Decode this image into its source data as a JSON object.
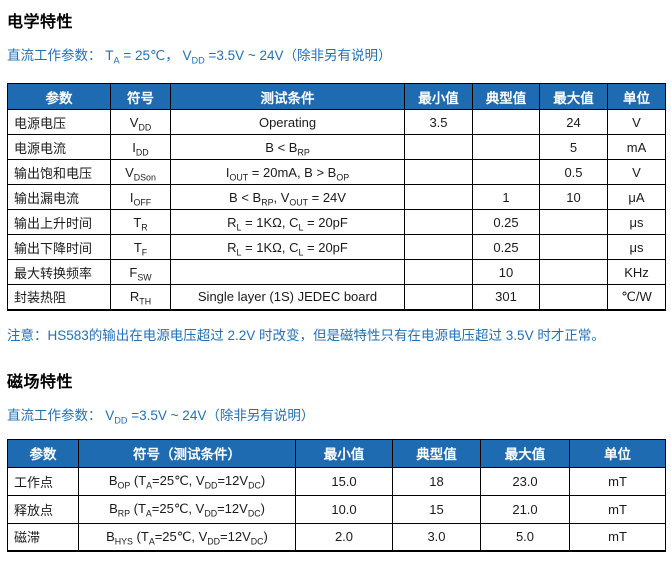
{
  "colors": {
    "header_bg": "#1E6BB1",
    "blue_text": "#2171B8",
    "border": "#000000"
  },
  "electrical": {
    "title": "电学特性",
    "condition": [
      {
        "t": "直流工作参数： T"
      },
      {
        "t": "A",
        "sub": true
      },
      {
        "t": " = 25℃， V"
      },
      {
        "t": "DD",
        "sub": true
      },
      {
        "t": " =3.5V ~ 24V（除非另有说明）"
      }
    ],
    "headers": [
      "参数",
      "符号",
      "测试条件",
      "最小值",
      "典型值",
      "最大值",
      "单位"
    ],
    "rows": [
      {
        "param": "电源电压",
        "symbol": [
          {
            "t": "V"
          },
          {
            "t": "DD",
            "sub": true
          }
        ],
        "cond": [
          {
            "t": "Operating"
          }
        ],
        "min": "3.5",
        "typ": "",
        "max": "24",
        "unit": "V"
      },
      {
        "param": "电源电流",
        "symbol": [
          {
            "t": "I"
          },
          {
            "t": "DD",
            "sub": true
          }
        ],
        "cond": [
          {
            "t": "B < B"
          },
          {
            "t": "RP",
            "sub": true
          }
        ],
        "min": "",
        "typ": "",
        "max": "5",
        "unit": "mA"
      },
      {
        "param": "输出饱和电压",
        "symbol": [
          {
            "t": "V"
          },
          {
            "t": "DSon",
            "sub": true
          }
        ],
        "cond": [
          {
            "t": "I"
          },
          {
            "t": "OUT",
            "sub": true
          },
          {
            "t": " = 20mA, B > B"
          },
          {
            "t": "OP",
            "sub": true
          }
        ],
        "min": "",
        "typ": "",
        "max": "0.5",
        "unit": "V"
      },
      {
        "param": "输出漏电流",
        "symbol": [
          {
            "t": "I"
          },
          {
            "t": "OFF",
            "sub": true
          }
        ],
        "cond": [
          {
            "t": "B < B"
          },
          {
            "t": "RP",
            "sub": true
          },
          {
            "t": ", V"
          },
          {
            "t": "OUT",
            "sub": true
          },
          {
            "t": " = 24V"
          }
        ],
        "min": "",
        "typ": "1",
        "max": "10",
        "unit": "μA"
      },
      {
        "param": "输出上升时间",
        "symbol": [
          {
            "t": "T"
          },
          {
            "t": "R",
            "sub": true
          }
        ],
        "cond": [
          {
            "t": "R"
          },
          {
            "t": "L",
            "sub": true
          },
          {
            "t": " = 1KΩ, C"
          },
          {
            "t": "L",
            "sub": true
          },
          {
            "t": " = 20pF"
          }
        ],
        "min": "",
        "typ": "0.25",
        "max": "",
        "unit": "μs"
      },
      {
        "param": "输出下降时间",
        "symbol": [
          {
            "t": "T"
          },
          {
            "t": "F",
            "sub": true
          }
        ],
        "cond": [
          {
            "t": "R"
          },
          {
            "t": "L",
            "sub": true
          },
          {
            "t": " = 1KΩ, C"
          },
          {
            "t": "L",
            "sub": true
          },
          {
            "t": " = 20pF"
          }
        ],
        "min": "",
        "typ": "0.25",
        "max": "",
        "unit": "μs"
      },
      {
        "param": "最大转换频率",
        "symbol": [
          {
            "t": "F"
          },
          {
            "t": "SW",
            "sub": true
          }
        ],
        "cond": [
          {
            "t": ""
          }
        ],
        "min": "",
        "typ": "10",
        "max": "",
        "unit": "KHz"
      },
      {
        "param": "封装热阻",
        "symbol": [
          {
            "t": "R"
          },
          {
            "t": "TH",
            "sub": true
          }
        ],
        "cond": [
          {
            "t": "Single layer (1S) JEDEC board"
          }
        ],
        "min": "",
        "typ": "301",
        "max": "",
        "unit": "℃/W"
      }
    ],
    "note": "注意：HS583的输出在电源电压超过 2.2V 时改变，但是磁特性只有在电源电压超过 3.5V 时才正常。"
  },
  "magnetic": {
    "title": "磁场特性",
    "condition": [
      {
        "t": "直流工作参数： V"
      },
      {
        "t": "DD",
        "sub": true
      },
      {
        "t": " =3.5V ~ 24V（除非另有说明）"
      }
    ],
    "headers": [
      "参数",
      "符号（测试条件）",
      "最小值",
      "典型值",
      "最大值",
      "单位"
    ],
    "rows": [
      {
        "param": "工作点",
        "symbol": [
          {
            "t": "B"
          },
          {
            "t": "OP",
            "sub": true
          },
          {
            "t": " (T"
          },
          {
            "t": "A",
            "sub": true
          },
          {
            "t": "=25℃, V"
          },
          {
            "t": "DD",
            "sub": true
          },
          {
            "t": "=12V"
          },
          {
            "t": "DC",
            "sub": true
          },
          {
            "t": ")"
          }
        ],
        "min": "15.0",
        "typ": "18",
        "max": "23.0",
        "unit": "mT"
      },
      {
        "param": "释放点",
        "symbol": [
          {
            "t": "B"
          },
          {
            "t": "RP",
            "sub": true
          },
          {
            "t": " (T"
          },
          {
            "t": "A",
            "sub": true
          },
          {
            "t": "=25℃, V"
          },
          {
            "t": "DD",
            "sub": true
          },
          {
            "t": "=12V"
          },
          {
            "t": "DC",
            "sub": true
          },
          {
            "t": ")"
          }
        ],
        "min": "10.0",
        "typ": "15",
        "max": "21.0",
        "unit": "mT"
      },
      {
        "param": "磁滞",
        "symbol": [
          {
            "t": "B"
          },
          {
            "t": "HYS",
            "sub": true
          },
          {
            "t": " (T"
          },
          {
            "t": "A",
            "sub": true
          },
          {
            "t": "=25℃, V"
          },
          {
            "t": "DD",
            "sub": true
          },
          {
            "t": "=12V"
          },
          {
            "t": "DC",
            "sub": true
          },
          {
            "t": ")"
          }
        ],
        "min": "2.0",
        "typ": "3.0",
        "max": "5.0",
        "unit": "mT"
      }
    ]
  }
}
